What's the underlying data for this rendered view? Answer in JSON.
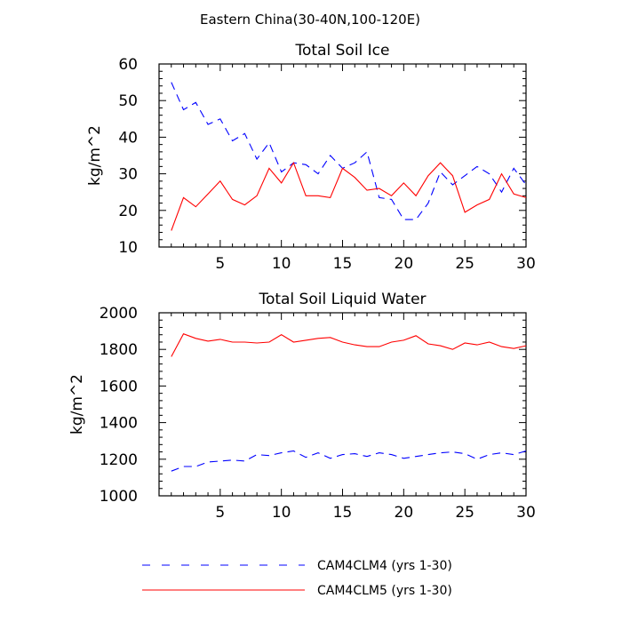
{
  "figure": {
    "main_title": "Eastern China(30-40N,100-120E)"
  },
  "legend": {
    "entries": [
      {
        "label": "CAM4CLM4 (yrs 1-30)",
        "color": "#0000ff",
        "dash": true
      },
      {
        "label": "CAM4CLM5 (yrs 1-30)",
        "color": "#ff0000",
        "dash": false
      }
    ]
  },
  "chart_data": [
    {
      "type": "line",
      "title": "Total Soil Ice",
      "xlabel": "",
      "ylabel": "kg/m^2",
      "xlim": [
        0,
        30
      ],
      "ylim": [
        10,
        60
      ],
      "xticks": [
        5,
        10,
        15,
        20,
        25,
        30
      ],
      "yticks": [
        10,
        20,
        30,
        40,
        50,
        60
      ],
      "x": [
        1,
        2,
        3,
        4,
        5,
        6,
        7,
        8,
        9,
        10,
        11,
        12,
        13,
        14,
        15,
        16,
        17,
        18,
        19,
        20,
        21,
        22,
        23,
        24,
        25,
        26,
        27,
        28,
        29,
        30
      ],
      "series": [
        {
          "name": "CAM4CLM4 (yrs 1-30)",
          "color": "#0000ff",
          "dash": true,
          "values": [
            55,
            47.5,
            49.5,
            43.5,
            45,
            39,
            41,
            34,
            38.5,
            30.5,
            33,
            32.5,
            30,
            35,
            31.5,
            33,
            36,
            23.5,
            23,
            17.5,
            17.5,
            22,
            30.5,
            27,
            29.5,
            32,
            30,
            25,
            31.5,
            27
          ]
        },
        {
          "name": "CAM4CLM5 (yrs 1-30)",
          "color": "#ff0000",
          "dash": false,
          "values": [
            14.5,
            23.5,
            21,
            24.5,
            28,
            23,
            21.5,
            24,
            31.5,
            27.5,
            33,
            24,
            24,
            23.5,
            31.5,
            29,
            25.5,
            26,
            24,
            27.5,
            24,
            29.5,
            33,
            29.5,
            19.5,
            21.5,
            23,
            30,
            24.5,
            23.5
          ]
        }
      ]
    },
    {
      "type": "line",
      "title": "Total Soil Liquid Water",
      "xlabel": "",
      "ylabel": "kg/m^2",
      "xlim": [
        0,
        30
      ],
      "ylim": [
        1000,
        2000
      ],
      "xticks": [
        5,
        10,
        15,
        20,
        25,
        30
      ],
      "yticks": [
        1000,
        1200,
        1400,
        1600,
        1800,
        2000
      ],
      "x": [
        1,
        2,
        3,
        4,
        5,
        6,
        7,
        8,
        9,
        10,
        11,
        12,
        13,
        14,
        15,
        16,
        17,
        18,
        19,
        20,
        21,
        22,
        23,
        24,
        25,
        26,
        27,
        28,
        29,
        30
      ],
      "series": [
        {
          "name": "CAM4CLM4 (yrs 1-30)",
          "color": "#0000ff",
          "dash": true,
          "values": [
            1135,
            1160,
            1160,
            1185,
            1190,
            1195,
            1190,
            1225,
            1220,
            1235,
            1245,
            1210,
            1235,
            1205,
            1225,
            1230,
            1215,
            1235,
            1225,
            1205,
            1215,
            1225,
            1235,
            1240,
            1230,
            1200,
            1225,
            1235,
            1225,
            1245
          ]
        },
        {
          "name": "CAM4CLM5 (yrs 1-30)",
          "color": "#ff0000",
          "dash": false,
          "values": [
            1760,
            1885,
            1860,
            1845,
            1855,
            1840,
            1840,
            1835,
            1840,
            1880,
            1840,
            1850,
            1860,
            1865,
            1840,
            1825,
            1815,
            1815,
            1840,
            1850,
            1875,
            1830,
            1820,
            1800,
            1835,
            1825,
            1840,
            1815,
            1805,
            1820
          ]
        }
      ]
    }
  ]
}
